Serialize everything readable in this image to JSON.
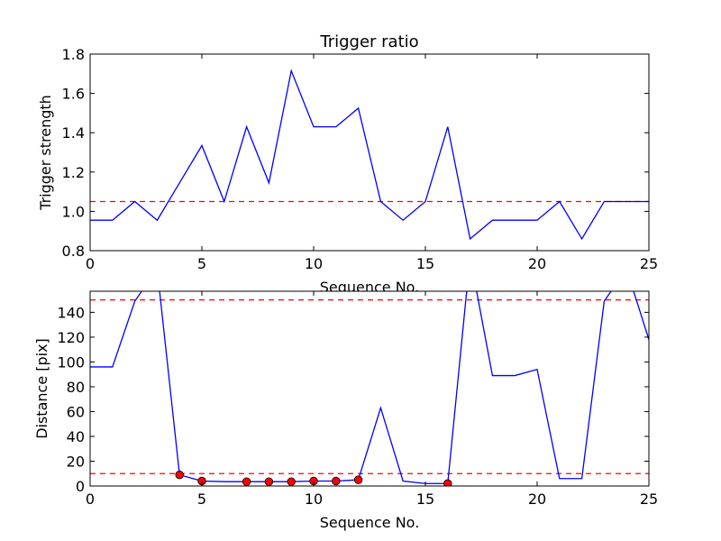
{
  "chart_data": [
    {
      "type": "line",
      "title": "Trigger ratio",
      "xlabel": "Sequence No.",
      "ylabel": "Trigger strength",
      "xlim": [
        0,
        25
      ],
      "ylim": [
        0.8,
        1.8
      ],
      "xticks": [
        "0",
        "5",
        "10",
        "15",
        "20",
        "25"
      ],
      "yticks": [
        "0.8",
        "1.0",
        "1.2",
        "1.4",
        "1.6",
        "1.8"
      ],
      "colors": {
        "line": "#0000ff",
        "threshold": "#ff0000"
      },
      "series": [
        {
          "x": [
            0,
            1,
            2,
            3,
            4,
            5,
            6,
            7,
            8,
            9,
            10,
            11,
            12,
            13,
            14,
            15,
            16,
            17,
            18,
            19,
            20,
            21,
            22,
            23,
            24,
            25
          ],
          "values": [
            0.955,
            0.955,
            1.05,
            0.955,
            1.145,
            1.335,
            1.05,
            1.43,
            1.145,
            1.715,
            1.43,
            1.43,
            1.525,
            1.05,
            0.955,
            1.05,
            1.43,
            0.86,
            0.955,
            0.955,
            0.955,
            1.05,
            0.86,
            1.05,
            1.05,
            1.05
          ]
        }
      ],
      "hlines": [
        1.05
      ]
    },
    {
      "type": "line",
      "title": "",
      "xlabel": "Sequence No.",
      "ylabel": "Distance [pix]",
      "xlim": [
        0,
        25
      ],
      "ylim": [
        0,
        157
      ],
      "xticks": [
        "0",
        "5",
        "10",
        "15",
        "20",
        "25"
      ],
      "yticks": [
        "0",
        "20",
        "40",
        "60",
        "80",
        "100",
        "120",
        "140"
      ],
      "colors": {
        "line": "#0000ff",
        "threshold": "#ff0000",
        "marker": "#ff0000"
      },
      "series": [
        {
          "x": [
            0,
            1,
            2,
            3,
            4,
            5,
            6,
            7,
            8,
            9,
            10,
            11,
            12,
            13,
            14,
            15,
            16,
            17,
            18,
            19,
            20,
            21,
            22,
            23,
            24,
            25
          ],
          "values": [
            96,
            96,
            149,
            175,
            9,
            4,
            3.5,
            3.5,
            3.5,
            3.5,
            4,
            4,
            5,
            63,
            4,
            2,
            2,
            185,
            89,
            89,
            94,
            6,
            6,
            149,
            175,
            118
          ]
        }
      ],
      "markers": {
        "x": [
          4,
          5,
          7,
          8,
          9,
          10,
          11,
          12,
          16
        ],
        "values": [
          9,
          4,
          3.5,
          3.5,
          3.5,
          4,
          4,
          5,
          2
        ]
      },
      "hlines": [
        150,
        10
      ]
    }
  ]
}
